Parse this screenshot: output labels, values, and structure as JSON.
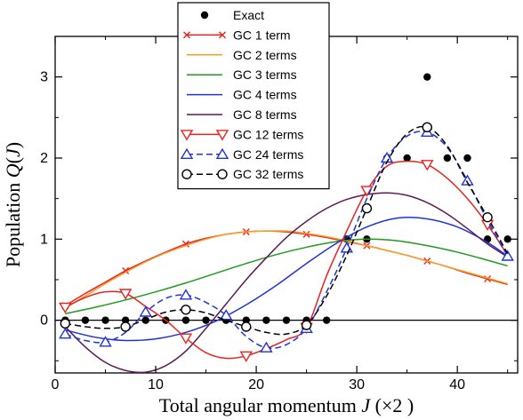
{
  "chart_data": {
    "type": "line",
    "xlabel": "Total angular momentum J (×2 )",
    "ylabel": "Population Q(J)",
    "xlim": [
      0,
      46
    ],
    "ylim": [
      -0.65,
      3.5
    ],
    "xticks": [
      0,
      10,
      20,
      30,
      40
    ],
    "yticks": [
      0,
      1,
      2,
      3
    ],
    "xtick_labels": [
      "0",
      "10",
      "20",
      "30",
      "40"
    ],
    "ytick_labels": [
      "0",
      "1",
      "2",
      "3"
    ],
    "zero_line": true,
    "grid": false,
    "legend_position": "top-center",
    "series": [
      {
        "name": "Exact",
        "color": "#000000",
        "style": "points",
        "marker": "dot",
        "x": [
          1,
          3,
          5,
          7,
          9,
          11,
          13,
          15,
          17,
          19,
          21,
          23,
          25,
          27,
          29,
          31,
          33,
          35,
          37,
          39,
          41,
          43,
          45
        ],
        "y": [
          0,
          0,
          0,
          0,
          0,
          0,
          0,
          0,
          0,
          0,
          0,
          0,
          0,
          0,
          1,
          1,
          2,
          2,
          3,
          2,
          2,
          1,
          1
        ]
      },
      {
        "name": "GC 1 term",
        "color": "#e8231f",
        "style": "line",
        "marker": "x",
        "x": [
          1,
          7,
          13,
          19,
          25,
          31,
          37,
          43
        ],
        "y": [
          0.18,
          0.61,
          0.94,
          1.09,
          1.06,
          0.92,
          0.73,
          0.51
        ],
        "curve_x": [
          1,
          3,
          5,
          7,
          9,
          11,
          13,
          15,
          17,
          19,
          21,
          23,
          25,
          27,
          29,
          31,
          33,
          35,
          37,
          39,
          41,
          43,
          45
        ],
        "curve_y": [
          0.18,
          0.33,
          0.47,
          0.61,
          0.73,
          0.84,
          0.94,
          1.01,
          1.06,
          1.09,
          1.1,
          1.09,
          1.06,
          1.02,
          0.97,
          0.92,
          0.86,
          0.8,
          0.73,
          0.66,
          0.58,
          0.51,
          0.44
        ]
      },
      {
        "name": "GC 2 terms",
        "color": "#f5a021",
        "style": "line",
        "marker": "none",
        "x": [
          1,
          3,
          5,
          7,
          9,
          11,
          13,
          15,
          17,
          19,
          21,
          23,
          25,
          27,
          29,
          31,
          33,
          35,
          37,
          39,
          41,
          43,
          45
        ],
        "y": [
          0.15,
          0.3,
          0.45,
          0.59,
          0.72,
          0.83,
          0.92,
          1.0,
          1.06,
          1.09,
          1.1,
          1.1,
          1.07,
          1.03,
          0.98,
          0.92,
          0.86,
          0.8,
          0.73,
          0.66,
          0.59,
          0.52,
          0.45
        ]
      },
      {
        "name": "GC 3 terms",
        "color": "#1f9a1f",
        "style": "line",
        "marker": "none",
        "x": [
          1,
          4,
          7,
          10,
          13,
          16,
          19,
          22,
          25,
          28,
          31,
          34,
          37,
          40,
          43,
          45
        ],
        "y": [
          0.08,
          0.16,
          0.25,
          0.35,
          0.46,
          0.58,
          0.7,
          0.81,
          0.9,
          0.97,
          1.0,
          0.98,
          0.92,
          0.84,
          0.74,
          0.67
        ]
      },
      {
        "name": "GC 4 terms",
        "color": "#1f33d6",
        "style": "line",
        "marker": "none",
        "x": [
          1,
          4,
          7,
          10,
          13,
          16,
          19,
          22,
          25,
          28,
          31,
          34,
          37,
          40,
          43,
          45
        ],
        "y": [
          -0.12,
          -0.21,
          -0.25,
          -0.23,
          -0.15,
          -0.01,
          0.19,
          0.43,
          0.7,
          0.95,
          1.15,
          1.26,
          1.25,
          1.15,
          0.96,
          0.79
        ]
      },
      {
        "name": "GC 8 terms",
        "color": "#5a1a55",
        "style": "line",
        "marker": "none",
        "x": [
          1,
          3,
          5,
          7,
          9,
          11,
          13,
          15,
          17,
          19,
          21,
          23,
          25,
          27,
          29,
          31,
          33,
          35,
          37,
          39,
          41,
          43,
          45
        ],
        "y": [
          -0.08,
          -0.33,
          -0.52,
          -0.62,
          -0.64,
          -0.56,
          -0.38,
          -0.1,
          0.2,
          0.5,
          0.77,
          1.02,
          1.22,
          1.38,
          1.49,
          1.55,
          1.57,
          1.54,
          1.45,
          1.31,
          1.13,
          0.94,
          0.78
        ]
      },
      {
        "name": "GC 12 terms",
        "color": "#e8231f",
        "style": "line",
        "marker": "triangle-down",
        "x": [
          1,
          7,
          13,
          19,
          25,
          31,
          37,
          43
        ],
        "y": [
          0.16,
          0.33,
          -0.22,
          -0.44,
          -0.09,
          1.6,
          1.92,
          1.18
        ],
        "curve_x": [
          1,
          3,
          5,
          7,
          9,
          11,
          13,
          15,
          17,
          19,
          21,
          23,
          25,
          27,
          29,
          31,
          33,
          35,
          37,
          39,
          41,
          43,
          45
        ],
        "curve_y": [
          0.16,
          0.28,
          0.35,
          0.33,
          0.17,
          0.0,
          -0.22,
          -0.4,
          -0.47,
          -0.44,
          -0.35,
          -0.24,
          -0.09,
          0.55,
          1.1,
          1.6,
          1.9,
          1.96,
          1.92,
          1.75,
          1.5,
          1.18,
          0.8
        ]
      },
      {
        "name": "GC 24 terms",
        "color": "#1f33d6",
        "style": "dashed",
        "marker": "triangle-up",
        "x": [
          1,
          5,
          9,
          13,
          17,
          21,
          25,
          29,
          33,
          37,
          41,
          45
        ],
        "y": [
          -0.17,
          -0.27,
          0.1,
          0.31,
          0.06,
          -0.34,
          -0.1,
          0.89,
          2.0,
          2.32,
          1.72,
          0.79
        ],
        "curve_x": [
          1,
          3,
          5,
          7,
          9,
          11,
          13,
          15,
          17,
          19,
          21,
          23,
          25,
          27,
          29,
          31,
          33,
          35,
          37,
          39,
          41,
          43,
          45
        ],
        "curve_y": [
          -0.17,
          -0.25,
          -0.27,
          -0.15,
          0.1,
          0.27,
          0.31,
          0.22,
          0.06,
          -0.2,
          -0.34,
          -0.3,
          -0.1,
          0.35,
          0.89,
          1.5,
          2.0,
          2.27,
          2.32,
          2.13,
          1.72,
          1.23,
          0.79
        ]
      },
      {
        "name": "GC 32 terms",
        "color": "#000000",
        "style": "dashed",
        "marker": "circle",
        "x": [
          1,
          7,
          13,
          19,
          25,
          31,
          37,
          43
        ],
        "y": [
          -0.04,
          -0.08,
          0.13,
          -0.08,
          -0.06,
          1.38,
          2.38,
          1.27
        ],
        "curve_x": [
          1,
          3,
          5,
          7,
          9,
          11,
          13,
          15,
          17,
          19,
          21,
          23,
          25,
          27,
          29,
          31,
          33,
          35,
          37,
          39,
          41,
          43,
          45
        ],
        "curve_y": [
          -0.04,
          -0.08,
          -0.1,
          -0.08,
          0.01,
          0.1,
          0.13,
          0.09,
          0.0,
          -0.08,
          -0.15,
          -0.17,
          -0.06,
          0.3,
          0.8,
          1.38,
          1.95,
          2.3,
          2.38,
          2.15,
          1.7,
          1.27,
          0.82
        ]
      }
    ]
  }
}
